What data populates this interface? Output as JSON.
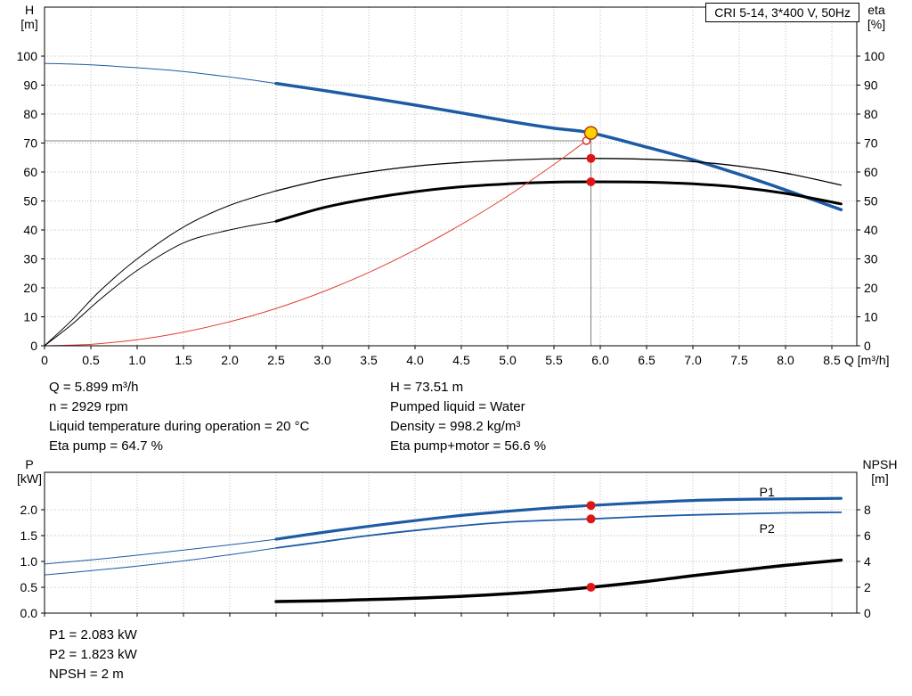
{
  "title_box": "CRI 5-14, 3*400 V, 50Hz",
  "info": {
    "left": [
      "Q = 5.899 m³/h",
      "n = 2929 rpm",
      "Liquid temperature during operation = 20 °C",
      "Eta pump = 64.7 %"
    ],
    "right": [
      "H = 73.51 m",
      "Pumped liquid = Water",
      "Density = 998.2 kg/m³",
      "Eta pump+motor = 56.6 %"
    ]
  },
  "results": [
    "P1 = 2.083 kW",
    "P2 = 1.823 kW",
    "NPSH = 2 m"
  ],
  "colors": {
    "curve_blue": "#1d5ba4",
    "curve_black": "#000000",
    "curve_red": "#e04134",
    "marker_red": "#e01616",
    "marker_yellow": "#ffd200",
    "marker_ring": "#b43a00",
    "crosshair": "#808080"
  },
  "marker_styles": {
    "yellow-dot": {
      "r": 7,
      "fill": "marker_yellow",
      "stroke": "marker_ring",
      "sw": 1.5
    },
    "red-dot": {
      "r": 5,
      "fill": "marker_red"
    },
    "open-red": {
      "r": 4,
      "fill": "#ffffff",
      "stroke": "marker_red",
      "sw": 1.3
    }
  },
  "chart_data": [
    {
      "type": "line",
      "name": "hq-eta-chart",
      "title": "CRI 5-14, 3*400 V, 50Hz",
      "grid": true,
      "x_axis": {
        "label": "Q [m³/h]",
        "min": 0,
        "max": 8.77,
        "tick_values": [
          0,
          0.5,
          1,
          1.5,
          2,
          2.5,
          3,
          3.5,
          4,
          4.5,
          5,
          5.5,
          6,
          6.5,
          7,
          7.5,
          8,
          8.5
        ],
        "tick_labels": [
          "0",
          "0.5",
          "1.0",
          "1.5",
          "2.0",
          "2.5",
          "3.0",
          "3.5",
          "4.0",
          "4.5",
          "5.0",
          "5.5",
          "6.0",
          "6.5",
          "7.0",
          "7.5",
          "8.0",
          "8.5"
        ]
      },
      "y_left": {
        "title_lines": [
          "H",
          "[m]"
        ],
        "min": 0,
        "max": 117,
        "tick_values": [
          0,
          10,
          20,
          30,
          40,
          50,
          60,
          70,
          80,
          90,
          100
        ],
        "tick_labels": [
          "0",
          "10",
          "20",
          "30",
          "40",
          "50",
          "60",
          "70",
          "80",
          "90",
          "100"
        ]
      },
      "y_right": {
        "title_lines": [
          "eta",
          "[%]"
        ],
        "min": 0,
        "max": 117,
        "tick_values": [
          0,
          10,
          20,
          30,
          40,
          50,
          60,
          70,
          80,
          90,
          100
        ],
        "tick_labels": [
          "0",
          "10",
          "20",
          "30",
          "40",
          "50",
          "60",
          "70",
          "80",
          "90",
          "100"
        ]
      },
      "series": [
        {
          "name": "head-curve-thin",
          "color": "curve_blue",
          "width": 1,
          "axis": "left",
          "points": [
            [
              0,
              97.5
            ],
            [
              0.5,
              97
            ],
            [
              1,
              96
            ],
            [
              1.5,
              94.7
            ],
            [
              2,
              92.8
            ],
            [
              2.5,
              90.6
            ]
          ]
        },
        {
          "name": "head-curve",
          "color": "curve_blue",
          "width": 3.5,
          "axis": "left",
          "points": [
            [
              2.5,
              90.6
            ],
            [
              3,
              88.2
            ],
            [
              3.5,
              85.7
            ],
            [
              4,
              83.1
            ],
            [
              4.5,
              80.4
            ],
            [
              5,
              77.6
            ],
            [
              5.5,
              75.1
            ],
            [
              5.899,
              73.51
            ],
            [
              6.5,
              68.6
            ],
            [
              7,
              64.2
            ],
            [
              7.5,
              59.2
            ],
            [
              8,
              53.8
            ],
            [
              8.6,
              47
            ]
          ]
        },
        {
          "name": "eta-pump-curve-thin",
          "color": "curve_black",
          "width": 1,
          "axis": "left",
          "points": [
            [
              0,
              0
            ],
            [
              0.3,
              9
            ],
            [
              0.6,
              19
            ],
            [
              1,
              30
            ],
            [
              1.5,
              41
            ],
            [
              2,
              48.5
            ],
            [
              2.5,
              53.5
            ]
          ]
        },
        {
          "name": "eta-pump-curve",
          "color": "curve_black",
          "width": 1.3,
          "axis": "left",
          "points": [
            [
              2.5,
              53.5
            ],
            [
              3,
              57.3
            ],
            [
              3.5,
              60
            ],
            [
              4,
              62
            ],
            [
              4.5,
              63.3
            ],
            [
              5,
              64.1
            ],
            [
              5.5,
              64.6
            ],
            [
              5.899,
              64.7
            ],
            [
              6.5,
              64.4
            ],
            [
              7,
              63.6
            ],
            [
              7.5,
              62
            ],
            [
              8,
              59.6
            ],
            [
              8.6,
              55.5
            ]
          ]
        },
        {
          "name": "eta-pump-motor-thin",
          "color": "curve_black",
          "width": 1,
          "axis": "left",
          "points": [
            [
              0,
              0
            ],
            [
              0.3,
              7.5
            ],
            [
              0.6,
              16
            ],
            [
              1,
              26
            ],
            [
              1.5,
              35.5
            ],
            [
              2,
              40
            ],
            [
              2.5,
              43
            ]
          ]
        },
        {
          "name": "eta-pump-motor-curve",
          "color": "curve_black",
          "width": 3,
          "axis": "left",
          "points": [
            [
              2.5,
              43
            ],
            [
              3,
              47.6
            ],
            [
              3.5,
              50.8
            ],
            [
              4,
              53.2
            ],
            [
              4.5,
              54.9
            ],
            [
              5,
              55.9
            ],
            [
              5.5,
              56.5
            ],
            [
              5.899,
              56.6
            ],
            [
              6.5,
              56.5
            ],
            [
              7,
              55.9
            ],
            [
              7.5,
              54.7
            ],
            [
              8,
              52.6
            ],
            [
              8.6,
              49
            ]
          ]
        },
        {
          "name": "system-curve",
          "color": "curve_red",
          "width": 1,
          "axis": "left",
          "points": [
            [
              0,
              0
            ],
            [
              0.5,
              0.5
            ],
            [
              1,
              2.1
            ],
            [
              1.5,
              4.7
            ],
            [
              2,
              8.3
            ],
            [
              2.5,
              12.9
            ],
            [
              3,
              18.6
            ],
            [
              3.5,
              25.3
            ],
            [
              4,
              33.1
            ],
            [
              4.5,
              41.9
            ],
            [
              5,
              51.7
            ],
            [
              5.5,
              62.6
            ],
            [
              5.85,
              70.8
            ]
          ]
        }
      ],
      "crosshair": [
        {
          "name": "duty-flow-line",
          "points": [
            [
              5.899,
              0
            ],
            [
              5.899,
              74.5
            ]
          ]
        },
        {
          "name": "duty-head-line",
          "points": [
            [
              0,
              70.8
            ],
            [
              5.899,
              70.8
            ]
          ]
        }
      ],
      "markers": [
        {
          "name": "requested-duty-point",
          "x": 5.85,
          "v": 70.8,
          "axis": "left",
          "style": "open-red"
        },
        {
          "name": "duty-point",
          "x": 5.899,
          "v": 73.51,
          "axis": "left",
          "style": "yellow-dot"
        },
        {
          "name": "eta-pump-point",
          "x": 5.899,
          "v": 64.7,
          "axis": "left",
          "style": "red-dot"
        },
        {
          "name": "eta-pump-motor-point",
          "x": 5.899,
          "v": 56.6,
          "axis": "left",
          "style": "red-dot"
        }
      ],
      "labels": []
    },
    {
      "type": "line",
      "name": "power-npsh-chart",
      "title": "",
      "grid": true,
      "x_axis": {
        "label": "",
        "min": 0,
        "max": 8.77,
        "tick_values": [
          0,
          0.5,
          1,
          1.5,
          2,
          2.5,
          3,
          3.5,
          4,
          4.5,
          5,
          5.5,
          6,
          6.5,
          7,
          7.5,
          8,
          8.5
        ],
        "tick_labels": []
      },
      "y_left": {
        "title_lines": [
          "P",
          "[kW]"
        ],
        "min": 0,
        "max": 2.72,
        "tick_values": [
          0,
          0.5,
          1,
          1.5,
          2
        ],
        "tick_labels": [
          "0.0",
          "0.5",
          "1.0",
          "1.5",
          "2.0"
        ]
      },
      "y_right": {
        "title_lines": [
          "NPSH",
          "[m]"
        ],
        "min": 0,
        "max": 10.9,
        "tick_values": [
          0,
          2,
          4,
          6,
          8
        ],
        "tick_labels": [
          "0",
          "2",
          "4",
          "6",
          "8"
        ]
      },
      "series": [
        {
          "name": "p1-curve-thin",
          "color": "curve_blue",
          "width": 1,
          "axis": "left",
          "points": [
            [
              0,
              0.95
            ],
            [
              0.5,
              1.03
            ],
            [
              1,
              1.12
            ],
            [
              1.5,
              1.22
            ],
            [
              2,
              1.32
            ],
            [
              2.5,
              1.43
            ]
          ]
        },
        {
          "name": "p1-curve",
          "color": "curve_blue",
          "width": 3.2,
          "axis": "left",
          "points": [
            [
              2.5,
              1.43
            ],
            [
              3,
              1.56
            ],
            [
              3.5,
              1.68
            ],
            [
              4,
              1.79
            ],
            [
              4.5,
              1.89
            ],
            [
              5,
              1.97
            ],
            [
              5.5,
              2.04
            ],
            [
              5.899,
              2.083
            ],
            [
              6.5,
              2.14
            ],
            [
              7,
              2.18
            ],
            [
              7.5,
              2.2
            ],
            [
              8,
              2.21
            ],
            [
              8.6,
              2.22
            ]
          ]
        },
        {
          "name": "p2-curve-thin",
          "color": "curve_blue",
          "width": 1,
          "axis": "left",
          "points": [
            [
              0,
              0.74
            ],
            [
              0.5,
              0.82
            ],
            [
              1,
              0.91
            ],
            [
              1.5,
              1.01
            ],
            [
              2,
              1.13
            ],
            [
              2.5,
              1.26
            ]
          ]
        },
        {
          "name": "p2-curve",
          "color": "curve_blue",
          "width": 1.8,
          "axis": "left",
          "points": [
            [
              2.5,
              1.26
            ],
            [
              3,
              1.38
            ],
            [
              3.5,
              1.5
            ],
            [
              4,
              1.6
            ],
            [
              4.5,
              1.69
            ],
            [
              5,
              1.76
            ],
            [
              5.5,
              1.8
            ],
            [
              5.899,
              1.823
            ],
            [
              6.5,
              1.87
            ],
            [
              7,
              1.9
            ],
            [
              7.5,
              1.92
            ],
            [
              8,
              1.94
            ],
            [
              8.6,
              1.95
            ]
          ]
        },
        {
          "name": "npsh-curve",
          "color": "curve_black",
          "width": 3.5,
          "axis": "right",
          "points": [
            [
              2.5,
              0.9
            ],
            [
              3,
              0.95
            ],
            [
              3.5,
              1.05
            ],
            [
              4,
              1.15
            ],
            [
              4.5,
              1.3
            ],
            [
              5,
              1.5
            ],
            [
              5.5,
              1.75
            ],
            [
              5.899,
              2
            ],
            [
              6.5,
              2.45
            ],
            [
              7,
              2.9
            ],
            [
              7.5,
              3.3
            ],
            [
              8,
              3.7
            ],
            [
              8.6,
              4.1
            ]
          ]
        }
      ],
      "crosshair": [],
      "markers": [
        {
          "name": "p1-point",
          "x": 5.899,
          "v": 2.083,
          "axis": "left",
          "style": "red-dot"
        },
        {
          "name": "p2-point",
          "x": 5.899,
          "v": 1.823,
          "axis": "left",
          "style": "red-dot"
        },
        {
          "name": "npsh-point",
          "x": 5.899,
          "v": 2,
          "axis": "right",
          "style": "red-dot"
        }
      ],
      "labels": [
        {
          "name": "p1-label",
          "text": "P1",
          "x": 7.8,
          "v": 2.26,
          "axis": "left",
          "color": "curve_blue"
        },
        {
          "name": "p2-label",
          "text": "P2",
          "x": 7.8,
          "v": 1.55,
          "axis": "left",
          "color": "curve_blue"
        }
      ]
    }
  ]
}
